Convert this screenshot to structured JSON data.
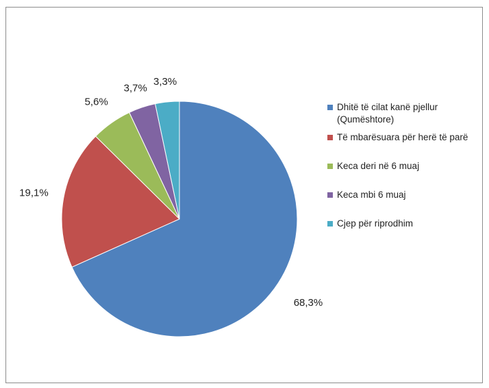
{
  "chart_data": {
    "type": "pie",
    "categories": [
      "Dhitë të cilat kanë pjellur (Qumështore)",
      "Të mbarësuara për herë të parë",
      "Keca deri në 6 muaj",
      "Keca  mbi 6 muaj",
      "Cjep për riprodhim"
    ],
    "values": [
      68.3,
      19.1,
      5.6,
      3.7,
      3.3
    ],
    "value_labels": [
      "68,3%",
      "19,1%",
      "5,6%",
      "3,7%",
      "3,3%"
    ],
    "colors": [
      "#4f81bd",
      "#c0504d",
      "#9bbb59",
      "#8064a2",
      "#4bacc6"
    ],
    "start": "12 o'clock",
    "direction": "clockwise",
    "legend": "right",
    "title": ""
  },
  "legend": {
    "items": [
      {
        "label": "Dhitë të cilat kanë pjellur",
        "label2": "(Qumështore)"
      },
      {
        "label": "Të mbarësuara për herë të parë"
      },
      {
        "label": "Keca deri në 6 muaj"
      },
      {
        "label": "Keca  mbi 6 muaj"
      },
      {
        "label": "Cjep për riprodhim"
      }
    ]
  }
}
